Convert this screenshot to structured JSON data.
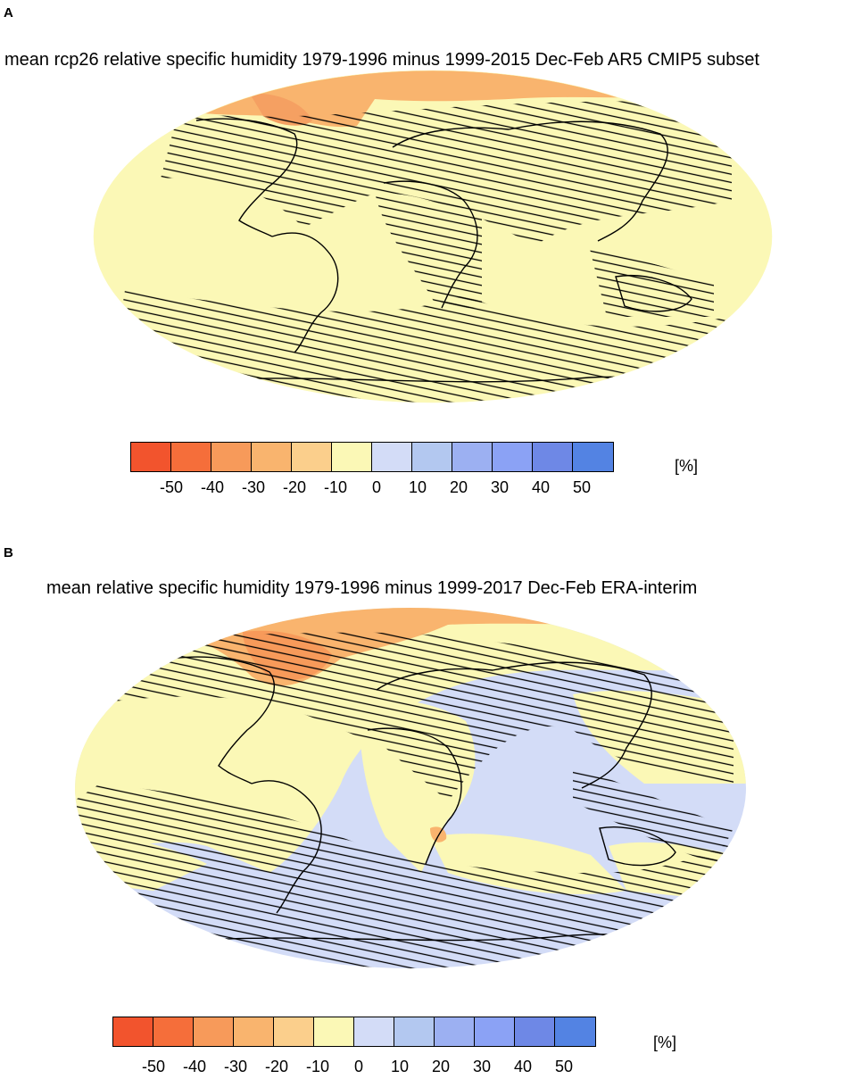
{
  "panels": [
    {
      "letter": "A",
      "title": "mean rcp26 relative specific humidity 1979-1996 minus 1999-2015 Dec-Feb AR5 CMIP5 subset",
      "colorbar": {
        "colors": [
          "#f2542d",
          "#f56e3a",
          "#f79a5a",
          "#f9b46e",
          "#fbcf8c",
          "#fbf8b6",
          "#d3dcf7",
          "#b3c8f0",
          "#9cb0f2",
          "#8ba2f5",
          "#6e88e6",
          "#5383e3"
        ],
        "tick_labels": [
          "-50",
          "-40",
          "-30",
          "-20",
          "-10",
          "0",
          "10",
          "20",
          "30",
          "40",
          "50"
        ],
        "unit": "[%]"
      }
    },
    {
      "letter": "B",
      "title": "mean relative specific humidity 1979-1996 minus 1999-2017 Dec-Feb ERA-interim",
      "colorbar": {
        "colors": [
          "#f2542d",
          "#f56e3a",
          "#f79a5a",
          "#f9b46e",
          "#fbcf8c",
          "#fbf8b6",
          "#d3dcf7",
          "#b3c8f0",
          "#9cb0f2",
          "#8ba2f5",
          "#6e88e6",
          "#5383e3"
        ],
        "tick_labels": [
          "-50",
          "-40",
          "-30",
          "-20",
          "-10",
          "0",
          "10",
          "20",
          "30",
          "40",
          "50"
        ],
        "unit": "[%]"
      }
    }
  ]
}
